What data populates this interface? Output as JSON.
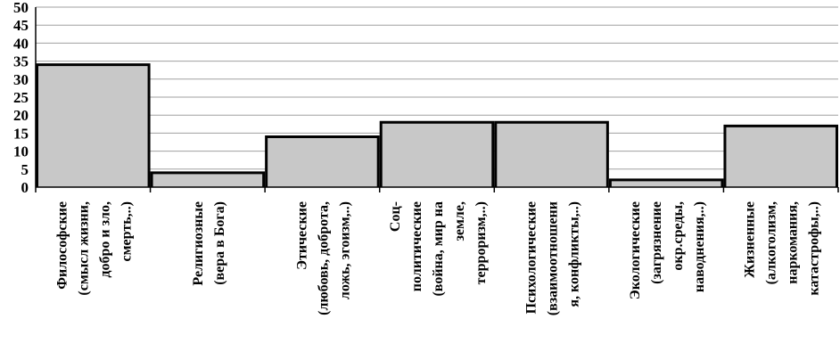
{
  "chart_data": {
    "type": "bar",
    "title": "",
    "xlabel": "",
    "ylabel": "",
    "ylim": [
      0,
      50
    ],
    "yticks": [
      0,
      5,
      10,
      15,
      20,
      25,
      30,
      35,
      40,
      45,
      50
    ],
    "grid": true,
    "legend": "none",
    "categories": [
      [
        "Философские",
        "(смысл жизни,",
        "добро и зло,",
        "смерть,..)"
      ],
      [
        "Религиозные",
        "(вера в Бога)"
      ],
      [
        "Этические",
        "(любовь, доброта,",
        "ложь, эгоизм,..)"
      ],
      [
        "Соц-",
        "политические",
        "(война, мир на",
        "земле,",
        "терроризм,..)"
      ],
      [
        "Психологические",
        "(взаимоотношени",
        "я, конфликты,..)"
      ],
      [
        "Экологические",
        "(загрязнение",
        "окр.среды,",
        "наводнения,..)"
      ],
      [
        "Жизненные",
        "(алкоголизм,",
        "наркомания,",
        "катастрофы,..)"
      ]
    ],
    "values": [
      34,
      4,
      14,
      18,
      18,
      2,
      17
    ],
    "colors": {
      "bar_fill": "#c8c8c8",
      "bar_stroke": "#000000",
      "grid": "#a0a0a0"
    }
  }
}
